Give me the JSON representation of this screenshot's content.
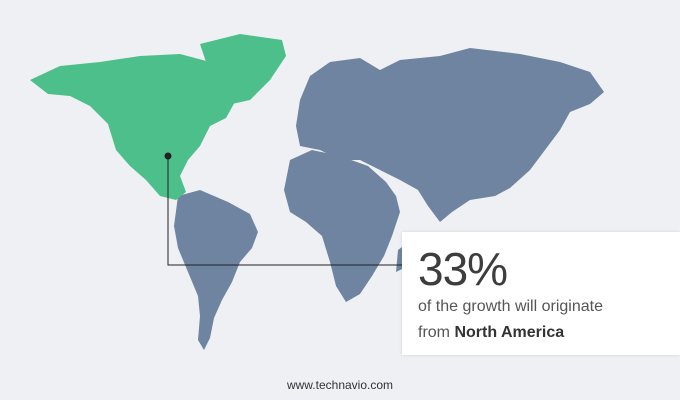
{
  "callout": {
    "percentage": "33%",
    "text_line1": "of the growth will originate",
    "text_prefix": "from",
    "region": "North America"
  },
  "footer": {
    "website": "www.technavio.com"
  },
  "colors": {
    "highlight_region": "#4dbf8a",
    "other_regions": "#6f84a0",
    "background": "#eef0f3"
  }
}
